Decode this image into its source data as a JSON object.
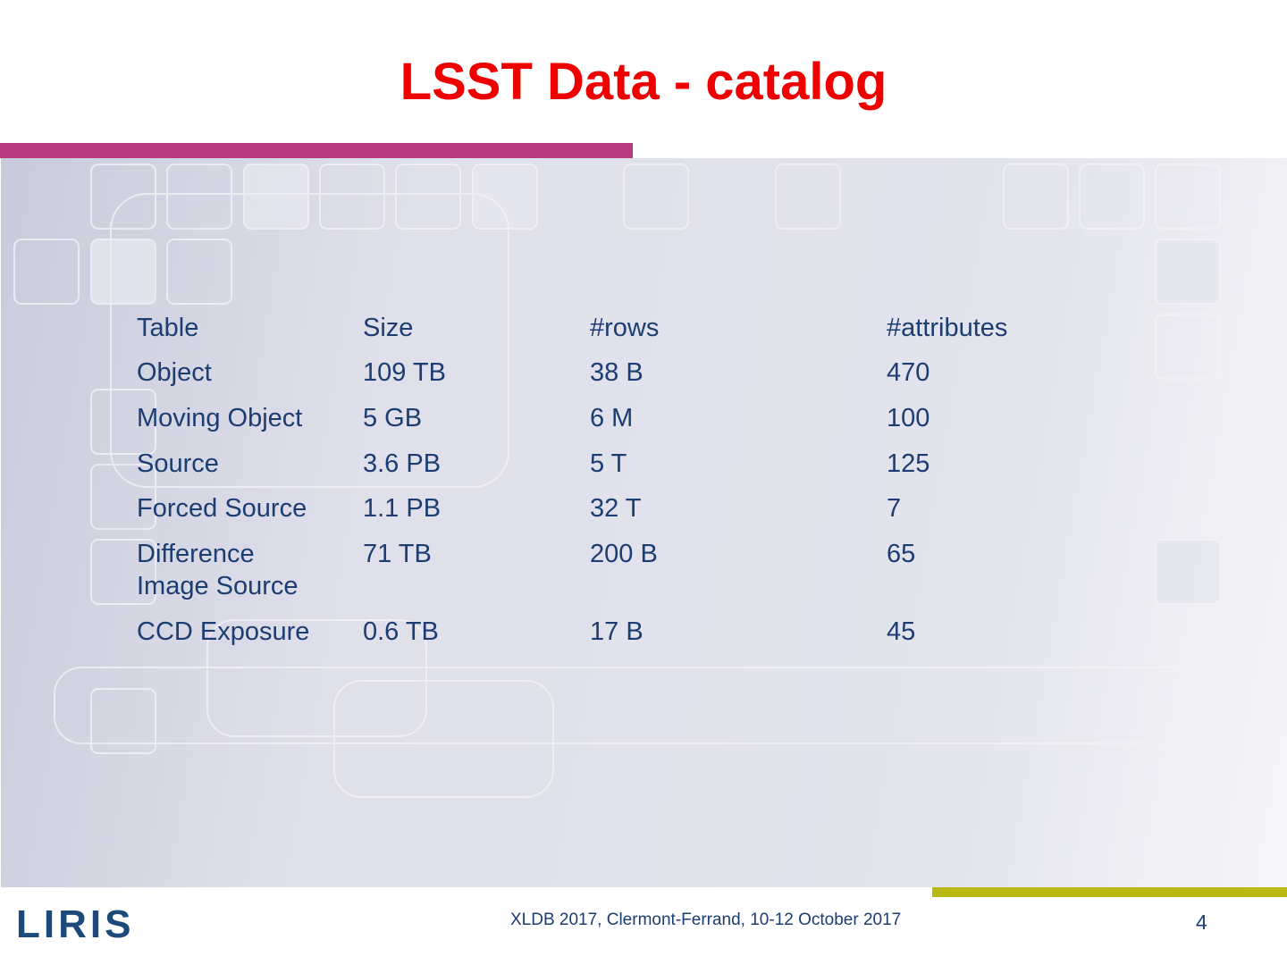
{
  "header": {
    "title": "LSST Data - catalog"
  },
  "table": {
    "header": [
      "Table",
      "Size",
      "#rows",
      "#attributes"
    ],
    "rows": [
      [
        "Object",
        "109 TB",
        "38 B",
        "470"
      ],
      [
        "Moving Object",
        "5 GB",
        "6 M",
        "100"
      ],
      [
        "Source",
        "3.6 PB",
        "5 T",
        "125"
      ],
      [
        "Forced Source",
        "1.1 PB",
        "32 T",
        "7"
      ],
      [
        "Difference Image Source",
        "71 TB",
        "200 B",
        "65"
      ],
      [
        "CCD Exposure",
        "0.6 TB",
        "17 B",
        "45"
      ]
    ]
  },
  "footer": {
    "logo": "LIRIS",
    "text": "XLDB 2017,  Clermont-Ferrand, 10-12 October 2017",
    "page_number": "4"
  }
}
